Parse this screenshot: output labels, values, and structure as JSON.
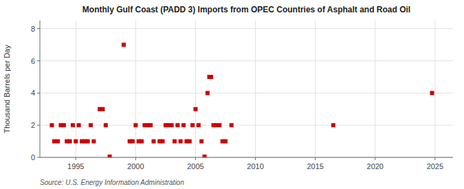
{
  "chart_data": {
    "type": "scatter",
    "title": "Monthly Gulf Coast (PADD 3) Imports from OPEC Countries of Asphalt and Road Oil",
    "y_label": "Thousand Barrels per Day",
    "annotations": [
      "Source: U.S. Energy Information Administration"
    ],
    "x": [
      1993.0,
      1993.2,
      1993.5,
      1993.75,
      1994.0,
      1994.25,
      1994.5,
      1994.75,
      1995.0,
      1995.25,
      1995.5,
      1995.75,
      1996.0,
      1996.25,
      1996.5,
      1997.0,
      1997.25,
      1997.5,
      1997.83,
      1999.0,
      1999.5,
      1999.75,
      2000.0,
      2000.25,
      2000.5,
      2000.75,
      2001.0,
      2001.25,
      2001.5,
      2002.0,
      2002.25,
      2002.5,
      2002.75,
      2003.0,
      2003.25,
      2003.5,
      2003.75,
      2004.0,
      2004.25,
      2004.5,
      2004.75,
      2005.0,
      2005.25,
      2005.5,
      2005.75,
      2006.0,
      2006.15,
      2006.3,
      2006.5,
      2006.75,
      2007.0,
      2007.25,
      2007.5,
      2008.0,
      2016.5,
      2024.75
    ],
    "values": [
      2,
      1,
      1,
      2,
      2,
      1,
      1,
      2,
      1,
      2,
      1,
      1,
      1,
      2,
      1,
      3,
      3,
      2,
      0.05,
      7,
      1,
      1,
      2,
      1,
      1,
      2,
      2,
      2,
      1,
      1,
      1,
      2,
      2,
      2,
      1,
      2,
      1,
      2,
      1,
      1,
      2,
      3,
      2,
      1,
      0.05,
      4,
      5,
      5,
      2,
      2,
      2,
      1,
      1,
      2,
      2,
      4
    ],
    "color": "#cc0000",
    "marker": "square",
    "xlim": [
      1992.0,
      2026.5
    ],
    "ylim": [
      0,
      8.5
    ],
    "xticks": [
      1995,
      2000,
      2005,
      2010,
      2015,
      2020,
      2025
    ],
    "yticks": [
      0,
      2,
      4,
      6,
      8
    ],
    "grid": true
  }
}
